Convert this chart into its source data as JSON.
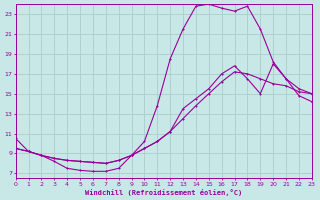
{
  "bg_color": "#c8e8e8",
  "grid_color": "#aacccc",
  "line_color": "#990099",
  "xlim": [
    0,
    23
  ],
  "ylim": [
    6.5,
    24.0
  ],
  "xticks": [
    0,
    1,
    2,
    3,
    4,
    5,
    6,
    7,
    8,
    9,
    10,
    11,
    12,
    13,
    14,
    15,
    16,
    17,
    18,
    19,
    20,
    21,
    22,
    23
  ],
  "yticks": [
    7,
    9,
    11,
    13,
    15,
    17,
    19,
    21,
    23
  ],
  "xlabel": "Windchill (Refroidissement éolien,°C)",
  "curve1_x": [
    0,
    1,
    2,
    3,
    4,
    5,
    6,
    7,
    8,
    9,
    10,
    11,
    12,
    13,
    14,
    15,
    16,
    17,
    18,
    19,
    20,
    21,
    22,
    23
  ],
  "curve1_y": [
    10.5,
    9.2,
    8.8,
    8.2,
    7.5,
    7.3,
    7.2,
    7.2,
    7.5,
    8.8,
    10.2,
    13.8,
    18.5,
    21.5,
    23.8,
    24.0,
    23.6,
    23.3,
    23.8,
    21.5,
    18.2,
    16.5,
    14.8,
    14.2
  ],
  "curve2_x": [
    0,
    1,
    2,
    3,
    4,
    5,
    6,
    7,
    8,
    9,
    10,
    11,
    12,
    13,
    14,
    15,
    16,
    17,
    18,
    19,
    20,
    21,
    22,
    23
  ],
  "curve2_y": [
    9.5,
    9.2,
    8.8,
    8.5,
    8.3,
    8.2,
    8.1,
    8.0,
    8.3,
    8.8,
    9.5,
    10.2,
    11.2,
    13.5,
    14.5,
    15.5,
    17.0,
    17.8,
    16.5,
    15.0,
    18.0,
    16.5,
    15.5,
    15.0
  ],
  "curve3_x": [
    0,
    1,
    2,
    3,
    4,
    5,
    6,
    7,
    8,
    9,
    10,
    11,
    12,
    13,
    14,
    15,
    16,
    17,
    18,
    19,
    20,
    21,
    22,
    23
  ],
  "curve3_y": [
    9.5,
    9.2,
    8.8,
    8.5,
    8.3,
    8.2,
    8.1,
    8.0,
    8.3,
    8.8,
    9.5,
    10.2,
    11.2,
    12.5,
    13.8,
    15.0,
    16.2,
    17.2,
    17.0,
    16.5,
    16.0,
    15.8,
    15.2,
    15.0
  ]
}
